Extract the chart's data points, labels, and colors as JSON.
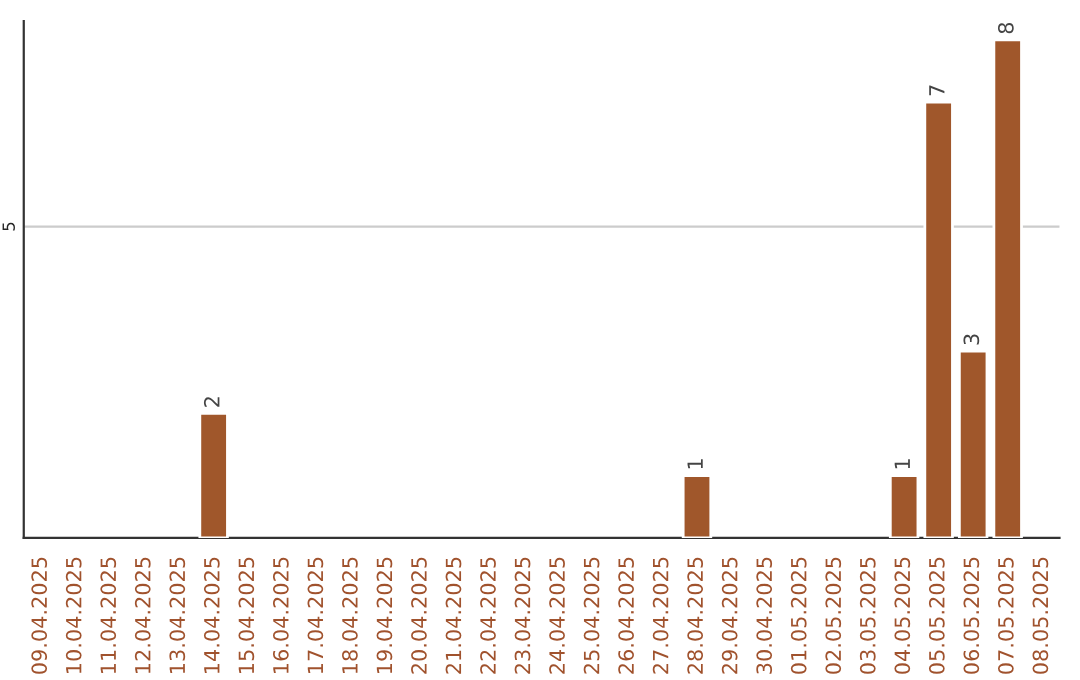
{
  "chart_data": {
    "type": "bar",
    "categories": [
      "09.04.2025",
      "10.04.2025",
      "11.04.2025",
      "12.04.2025",
      "13.04.2025",
      "14.04.2025",
      "15.04.2025",
      "16.04.2025",
      "17.04.2025",
      "18.04.2025",
      "19.04.2025",
      "20.04.2025",
      "21.04.2025",
      "22.04.2025",
      "23.04.2025",
      "24.04.2025",
      "25.04.2025",
      "26.04.2025",
      "27.04.2025",
      "28.04.2025",
      "29.04.2025",
      "30.04.2025",
      "01.05.2025",
      "02.05.2025",
      "03.05.2025",
      "04.05.2025",
      "05.05.2025",
      "06.05.2025",
      "07.05.2025",
      "08.05.2025"
    ],
    "values": [
      null,
      null,
      null,
      null,
      null,
      2,
      null,
      null,
      null,
      null,
      null,
      null,
      null,
      null,
      null,
      null,
      null,
      null,
      null,
      1,
      null,
      null,
      null,
      null,
      null,
      1,
      7,
      3,
      8,
      null
    ],
    "color": "#a0572b",
    "ylim": [
      0,
      8.3
    ],
    "yticks": [
      5
    ],
    "grid": "y",
    "data_labels": true,
    "legend": false
  }
}
